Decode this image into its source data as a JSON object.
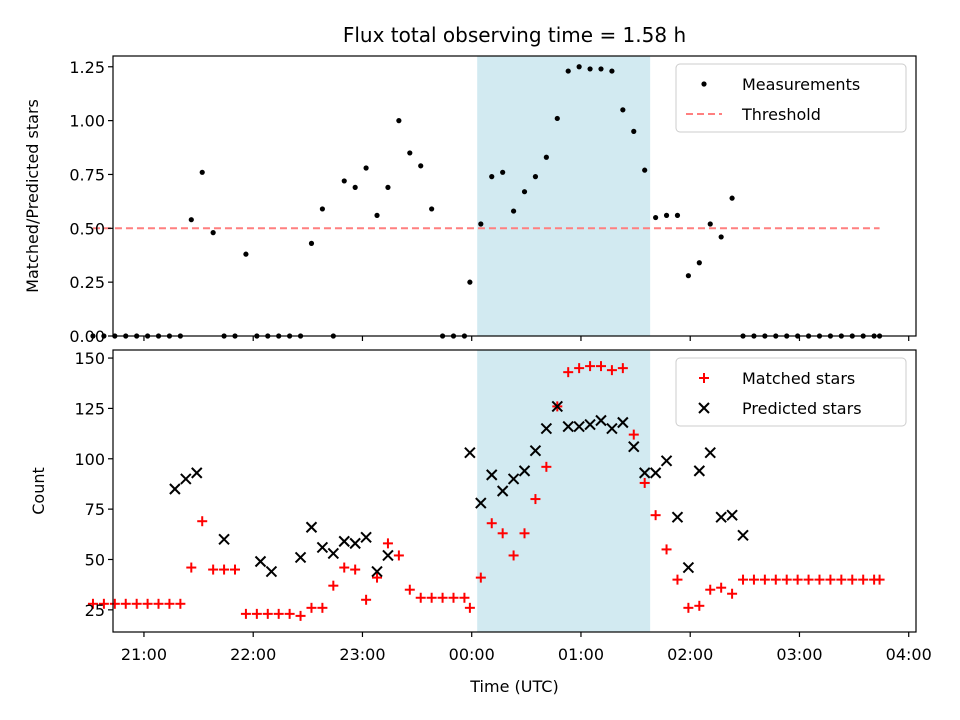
{
  "chart_data": [
    {
      "type": "scatter",
      "title": "Flux total observing time = 1.58 h",
      "xlabel": "",
      "ylabel": "Matched/Predicted stars",
      "ylim": [
        0,
        1.3
      ],
      "yticks": [
        "0.00",
        "0.25",
        "0.50",
        "0.75",
        "1.00",
        "1.25"
      ],
      "ytick_values": [
        0,
        0.25,
        0.5,
        0.75,
        1.0,
        1.25
      ],
      "xlim": [
        "20:43",
        "04:04"
      ],
      "grid": false,
      "legend_position": "top-right",
      "highlight_band": {
        "x_start": "00:03",
        "x_end": "01:38",
        "color": "#add8e6"
      },
      "series": [
        {
          "name": "Measurements",
          "marker": "dot",
          "color": "#000000",
          "x": [
            "20:32",
            "20:38",
            "20:44",
            "20:50",
            "20:56",
            "21:02",
            "21:08",
            "21:14",
            "21:20",
            "21:26",
            "21:32",
            "21:38",
            "21:44",
            "21:50",
            "21:56",
            "22:02",
            "22:08",
            "22:14",
            "22:20",
            "22:26",
            "22:32",
            "22:38",
            "22:44",
            "22:50",
            "22:56",
            "23:02",
            "23:08",
            "23:14",
            "23:20",
            "23:26",
            "23:32",
            "23:38",
            "23:44",
            "23:50",
            "23:56",
            "23:59",
            "00:05",
            "00:11",
            "00:17",
            "00:23",
            "00:29",
            "00:35",
            "00:41",
            "00:47",
            "00:53",
            "00:59",
            "01:05",
            "01:11",
            "01:17",
            "01:23",
            "01:29",
            "01:35",
            "01:41",
            "01:47",
            "01:53",
            "01:59",
            "02:05",
            "02:11",
            "02:17",
            "02:23",
            "02:29",
            "02:35",
            "02:41",
            "02:47",
            "02:53",
            "02:59",
            "03:05",
            "03:11",
            "03:17",
            "03:23",
            "03:29",
            "03:35",
            "03:41",
            "03:44"
          ],
          "y": [
            0,
            0,
            0,
            0,
            0,
            0,
            0,
            0,
            0,
            0.54,
            0.76,
            0.48,
            0,
            0,
            0.38,
            0,
            0,
            0,
            0,
            0,
            0.43,
            0.59,
            0,
            0.72,
            0.69,
            0.78,
            0.56,
            0.69,
            1.0,
            0.85,
            0.79,
            0.59,
            0,
            0,
            0,
            0.25,
            0.52,
            0.74,
            0.76,
            0.58,
            0.67,
            0.74,
            0.83,
            1.01,
            1.23,
            1.25,
            1.24,
            1.24,
            1.23,
            1.05,
            0.95,
            0.77,
            0.55,
            0.56,
            0.56,
            0.28,
            0.34,
            0.52,
            0.46,
            0.64,
            0,
            0,
            0,
            0,
            0,
            0,
            0,
            0,
            0,
            0,
            0,
            0,
            0,
            0
          ]
        },
        {
          "name": "Threshold",
          "line_style": "dashed",
          "color": "#ff7f7f",
          "x": [
            "20:32",
            "03:44"
          ],
          "y": [
            0.5,
            0.5
          ]
        }
      ]
    },
    {
      "type": "scatter",
      "title": "",
      "xlabel": "Time (UTC)",
      "ylabel": "Count",
      "ylim": [
        14,
        154
      ],
      "yticks": [
        "25",
        "50",
        "75",
        "100",
        "125",
        "150"
      ],
      "ytick_values": [
        25,
        50,
        75,
        100,
        125,
        150
      ],
      "xlim": [
        "20:43",
        "04:04"
      ],
      "xticks": [
        "21:00",
        "22:00",
        "23:00",
        "00:00",
        "01:00",
        "02:00",
        "03:00",
        "04:00"
      ],
      "grid": false,
      "legend_position": "top-right",
      "highlight_band": {
        "x_start": "00:03",
        "x_end": "01:38",
        "color": "#add8e6"
      },
      "series": [
        {
          "name": "Matched stars",
          "marker": "plus",
          "color": "#ff0000",
          "x": [
            "20:32",
            "20:38",
            "20:44",
            "20:50",
            "20:56",
            "21:02",
            "21:08",
            "21:14",
            "21:20",
            "21:26",
            "21:32",
            "21:38",
            "21:44",
            "21:50",
            "21:56",
            "22:02",
            "22:08",
            "22:14",
            "22:20",
            "22:26",
            "22:32",
            "22:38",
            "22:44",
            "22:50",
            "22:56",
            "23:02",
            "23:08",
            "23:14",
            "23:20",
            "23:26",
            "23:32",
            "23:38",
            "23:44",
            "23:50",
            "23:56",
            "23:59",
            "00:05",
            "00:11",
            "00:17",
            "00:23",
            "00:29",
            "00:35",
            "00:41",
            "00:47",
            "00:53",
            "00:59",
            "01:05",
            "01:11",
            "01:17",
            "01:23",
            "01:29",
            "01:35",
            "01:41",
            "01:47",
            "01:53",
            "01:59",
            "02:05",
            "02:11",
            "02:17",
            "02:23",
            "02:29",
            "02:35",
            "02:41",
            "02:47",
            "02:53",
            "02:59",
            "03:05",
            "03:11",
            "03:17",
            "03:23",
            "03:29",
            "03:35",
            "03:41",
            "03:44"
          ],
          "y": [
            28,
            28,
            28,
            28,
            28,
            28,
            28,
            28,
            28,
            46,
            69,
            45,
            45,
            45,
            23,
            23,
            23,
            23,
            23,
            22,
            26,
            26,
            37,
            46,
            45,
            30,
            41,
            58,
            52,
            35,
            31,
            31,
            31,
            31,
            31,
            26,
            41,
            68,
            63,
            52,
            63,
            80,
            96,
            126,
            143,
            145,
            146,
            146,
            144,
            145,
            112,
            88,
            72,
            55,
            40,
            26,
            27,
            35,
            36,
            33,
            40,
            40,
            40,
            40,
            40,
            40,
            40,
            40,
            40,
            40,
            40,
            40,
            40,
            40
          ]
        },
        {
          "name": "Predicted stars",
          "marker": "x",
          "color": "#000000",
          "x": [
            "21:17",
            "21:23",
            "21:29",
            "21:44",
            "22:04",
            "22:10",
            "22:26",
            "22:32",
            "22:38",
            "22:44",
            "22:50",
            "22:56",
            "23:02",
            "23:08",
            "23:14",
            "23:59",
            "00:05",
            "00:11",
            "00:17",
            "00:23",
            "00:29",
            "00:35",
            "00:41",
            "00:47",
            "00:53",
            "00:59",
            "01:05",
            "01:11",
            "01:17",
            "01:23",
            "01:29",
            "01:35",
            "01:41",
            "01:47",
            "01:53",
            "01:59",
            "02:05",
            "02:11",
            "02:17",
            "02:23",
            "02:29"
          ],
          "y": [
            85,
            90,
            93,
            60,
            49,
            44,
            51,
            66,
            56,
            53,
            59,
            58,
            61,
            44,
            52,
            103,
            78,
            92,
            84,
            90,
            94,
            104,
            115,
            126,
            116,
            116,
            117,
            119,
            115,
            118,
            106,
            93,
            93,
            99,
            71,
            46,
            94,
            103,
            71,
            72,
            62
          ]
        }
      ]
    }
  ]
}
